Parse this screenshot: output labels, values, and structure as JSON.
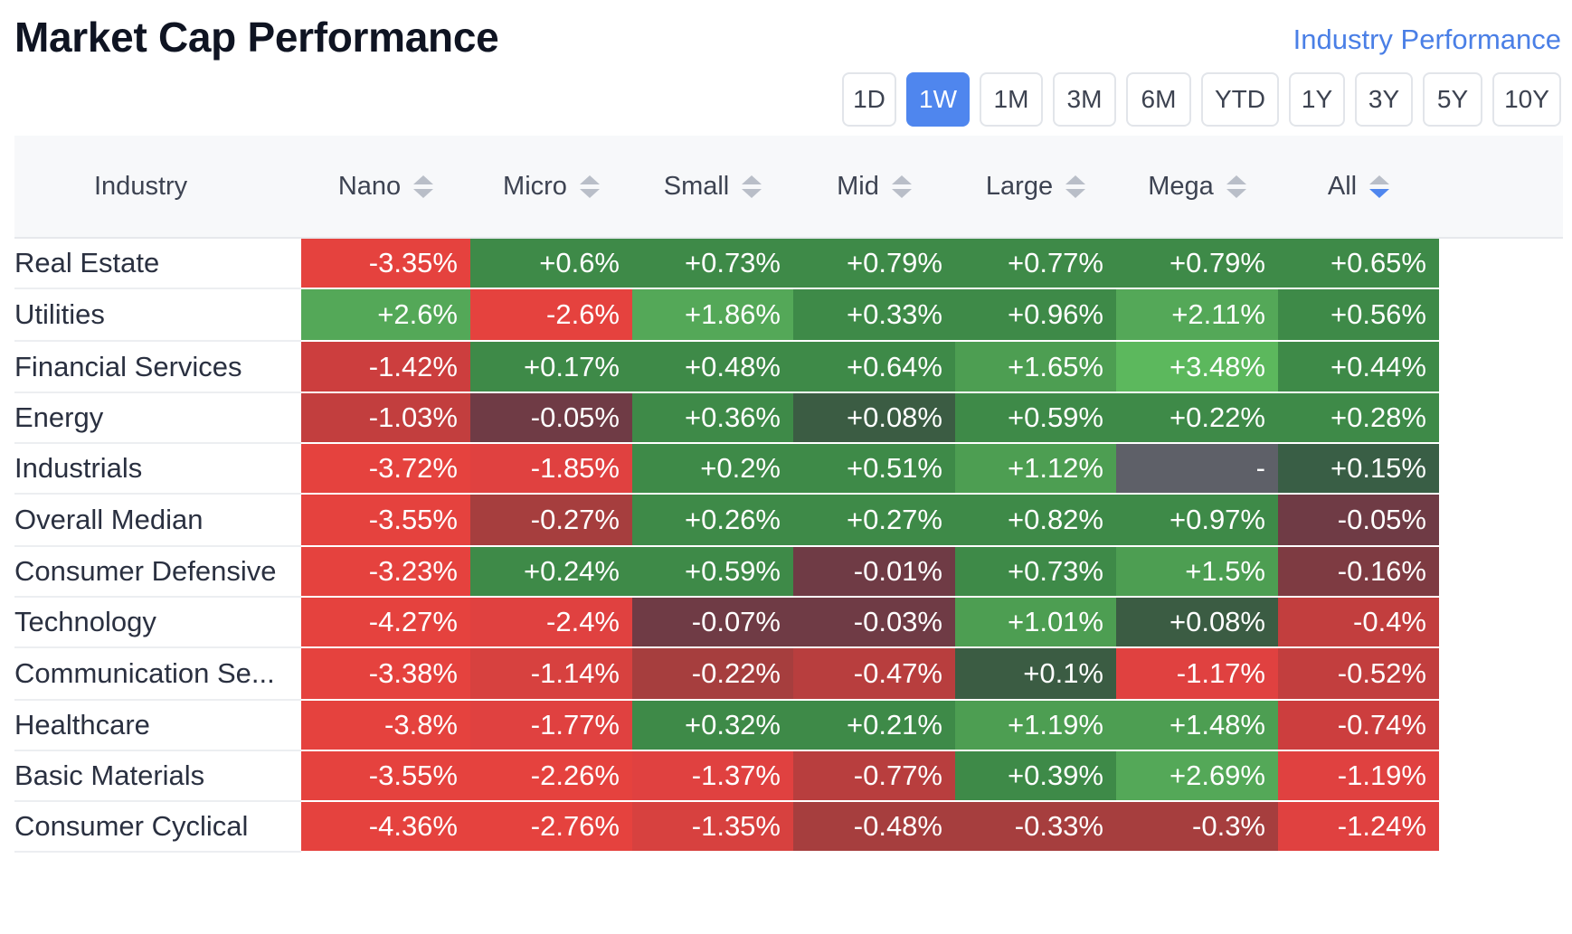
{
  "title": "Market Cap Performance",
  "industry_link": "Industry Performance",
  "periods": [
    {
      "label": "1D",
      "active": false
    },
    {
      "label": "1W",
      "active": true
    },
    {
      "label": "1M",
      "active": false
    },
    {
      "label": "3M",
      "active": false
    },
    {
      "label": "6M",
      "active": false
    },
    {
      "label": "YTD",
      "active": false
    },
    {
      "label": "1Y",
      "active": false
    },
    {
      "label": "3Y",
      "active": false
    },
    {
      "label": "5Y",
      "active": false
    },
    {
      "label": "10Y",
      "active": false
    }
  ],
  "table": {
    "industry_header": "Industry",
    "columns": [
      {
        "label": "Nano",
        "sorted": false
      },
      {
        "label": "Micro",
        "sorted": false
      },
      {
        "label": "Small",
        "sorted": false
      },
      {
        "label": "Mid",
        "sorted": false
      },
      {
        "label": "Large",
        "sorted": false
      },
      {
        "label": "Mega",
        "sorted": false
      },
      {
        "label": "All",
        "sorted": true
      }
    ],
    "rows": [
      {
        "industry": "Real Estate",
        "values": [
          "-3.35%",
          "+0.6%",
          "+0.73%",
          "+0.79%",
          "+0.77%",
          "+0.79%",
          "+0.65%"
        ],
        "colors": [
          "#e5423e",
          "#3e8a48",
          "#3e8a48",
          "#3e8a48",
          "#3e8a48",
          "#3e8a48",
          "#3e8a48"
        ]
      },
      {
        "industry": "Utilities",
        "values": [
          "+2.6%",
          "-2.6%",
          "+1.86%",
          "+0.33%",
          "+0.96%",
          "+2.11%",
          "+0.56%"
        ],
        "colors": [
          "#54a858",
          "#e5423e",
          "#54a858",
          "#3e8a48",
          "#3e8a48",
          "#54a858",
          "#3e8a48"
        ]
      },
      {
        "industry": "Financial Services",
        "values": [
          "-1.42%",
          "+0.17%",
          "+0.48%",
          "+0.64%",
          "+1.65%",
          "+3.48%",
          "+0.44%"
        ],
        "colors": [
          "#cc3e3e",
          "#3e8a48",
          "#3e8a48",
          "#3e8a48",
          "#4d9e52",
          "#5cb85d",
          "#3e8a48"
        ]
      },
      {
        "industry": "Energy",
        "values": [
          "-1.03%",
          "-0.05%",
          "+0.36%",
          "+0.08%",
          "+0.59%",
          "+0.22%",
          "+0.28%"
        ],
        "colors": [
          "#c23e3e",
          "#6f3b45",
          "#3e8a48",
          "#3b5c43",
          "#3e8a48",
          "#3e8a48",
          "#3e8a48"
        ]
      },
      {
        "industry": "Industrials",
        "values": [
          "-3.72%",
          "-1.85%",
          "+0.2%",
          "+0.51%",
          "+1.12%",
          "-",
          "+0.15%"
        ],
        "colors": [
          "#e5423e",
          "#e04140",
          "#3e8a48",
          "#3e8a48",
          "#4d9e52",
          "#5e6068",
          "#395e45"
        ]
      },
      {
        "industry": "Overall Median",
        "values": [
          "-3.55%",
          "-0.27%",
          "+0.26%",
          "+0.27%",
          "+0.82%",
          "+0.97%",
          "-0.05%"
        ],
        "colors": [
          "#e5423e",
          "#a63e3e",
          "#3e8a48",
          "#3e8a48",
          "#3e8a48",
          "#3e8a48",
          "#6f3b45"
        ]
      },
      {
        "industry": "Consumer Defensive",
        "values": [
          "-3.23%",
          "+0.24%",
          "+0.59%",
          "-0.01%",
          "+0.73%",
          "+1.5%",
          "-0.16%"
        ],
        "colors": [
          "#e5423e",
          "#3e8a48",
          "#3e8a48",
          "#6f3b45",
          "#3e8a48",
          "#4d9e52",
          "#7e3b42"
        ]
      },
      {
        "industry": "Technology",
        "values": [
          "-4.27%",
          "-2.4%",
          "-0.07%",
          "-0.03%",
          "+1.01%",
          "+0.08%",
          "-0.4%"
        ],
        "colors": [
          "#e5423e",
          "#e04140",
          "#6f3b45",
          "#6f3b45",
          "#4d9e52",
          "#3b5c43",
          "#c23e3e"
        ]
      },
      {
        "industry": "Communication Se...",
        "values": [
          "-3.38%",
          "-1.14%",
          "-0.22%",
          "-0.47%",
          "+0.1%",
          "-1.17%",
          "-0.52%"
        ],
        "colors": [
          "#e5423e",
          "#d7413f",
          "#a63e3e",
          "#b83e3e",
          "#3b5c43",
          "#e04140",
          "#c23e3e"
        ]
      },
      {
        "industry": "Healthcare",
        "values": [
          "-3.8%",
          "-1.77%",
          "+0.32%",
          "+0.21%",
          "+1.19%",
          "+1.48%",
          "-0.74%"
        ],
        "colors": [
          "#e5423e",
          "#e04140",
          "#3e8a48",
          "#3e8a48",
          "#4d9e52",
          "#4d9e52",
          "#cc3e3e"
        ]
      },
      {
        "industry": "Basic Materials",
        "values": [
          "-3.55%",
          "-2.26%",
          "-1.37%",
          "-0.77%",
          "+0.39%",
          "+2.69%",
          "-1.19%"
        ],
        "colors": [
          "#e5423e",
          "#e5423e",
          "#e04140",
          "#b83e3e",
          "#3e8a48",
          "#54a858",
          "#e04140"
        ]
      },
      {
        "industry": "Consumer Cyclical",
        "values": [
          "-4.36%",
          "-2.76%",
          "-1.35%",
          "-0.48%",
          "-0.33%",
          "-0.3%",
          "-1.24%"
        ],
        "colors": [
          "#e5423e",
          "#e5423e",
          "#d7413f",
          "#a63e3e",
          "#a63e3e",
          "#a63e3e",
          "#e04140"
        ]
      }
    ]
  }
}
